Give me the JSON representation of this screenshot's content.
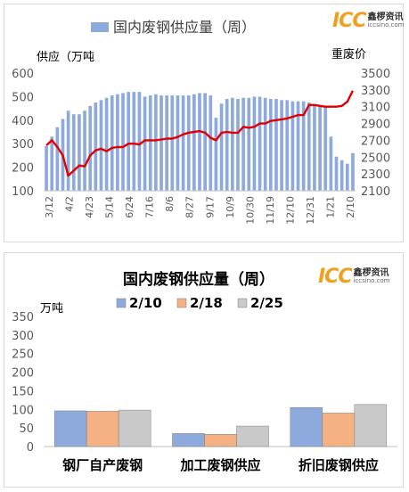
{
  "charts": [
    {
      "type": "bar+line",
      "title": "国内废钢供应量（周）",
      "legend": "国内废钢供应量（周）",
      "ylabel_left": "供应（万吨",
      "ylabel_right": "重废价",
      "ylim_left": [
        100,
        600
      ],
      "yticks_left": [
        "100",
        "200",
        "300",
        "400",
        "500",
        "600"
      ],
      "ylim_right": [
        2100,
        3500
      ],
      "yticks_right": [
        "2100",
        "2300",
        "2500",
        "2700",
        "2900",
        "3100",
        "3300",
        "3500"
      ],
      "xtick_labels": [
        "3/12",
        "4/2",
        "4/23",
        "5/14",
        "6/24",
        "7/16",
        "8/6",
        "8/27",
        "9/17",
        "10/9",
        "10/30",
        "11/19",
        "12/10",
        "12/31",
        "1/21",
        "2/10"
      ],
      "bar_color": "#8ea9db",
      "line_color": "#e00000",
      "bars": [
        290,
        330,
        370,
        405,
        440,
        425,
        425,
        440,
        460,
        475,
        485,
        495,
        505,
        510,
        515,
        520,
        520,
        520,
        500,
        505,
        510,
        505,
        505,
        505,
        505,
        505,
        505,
        510,
        515,
        515,
        505,
        410,
        470,
        490,
        495,
        490,
        495,
        495,
        500,
        500,
        495,
        490,
        490,
        485,
        485,
        480,
        480,
        480,
        475,
        465,
        460,
        460,
        330,
        245,
        230,
        215,
        260
      ],
      "line": [
        2640,
        2700,
        2620,
        2520,
        2280,
        2340,
        2400,
        2390,
        2520,
        2580,
        2600,
        2570,
        2610,
        2620,
        2620,
        2660,
        2660,
        2650,
        2700,
        2700,
        2700,
        2710,
        2720,
        2720,
        2740,
        2770,
        2790,
        2800,
        2810,
        2790,
        2730,
        2700,
        2790,
        2800,
        2790,
        2790,
        2860,
        2850,
        2860,
        2900,
        2900,
        2930,
        2940,
        2950,
        2960,
        2980,
        3000,
        3000,
        3120,
        3120,
        3110,
        3100,
        3100,
        3100,
        3110,
        3160,
        3290
      ]
    },
    {
      "type": "bar",
      "title": "国内废钢供应量（周）",
      "unit": "万吨",
      "ylim": [
        0,
        350
      ],
      "yticks": [
        "0",
        "50",
        "100",
        "150",
        "200",
        "250",
        "300",
        "350"
      ],
      "categories": [
        "钢厂自产废钢",
        "加工废钢供应",
        "折旧废钢供应"
      ],
      "series": [
        {
          "name": "2/10",
          "color": "#8ea9db",
          "values": [
            96,
            35,
            105
          ]
        },
        {
          "name": "2/18",
          "color": "#f4b183",
          "values": [
            95,
            33,
            90
          ]
        },
        {
          "name": "2/25",
          "color": "#c9c9c9",
          "values": [
            98,
            55,
            113
          ]
        }
      ]
    }
  ],
  "logo": {
    "mark": "ICC",
    "cn": "鑫椤资讯",
    "url": "iccsino.com"
  }
}
